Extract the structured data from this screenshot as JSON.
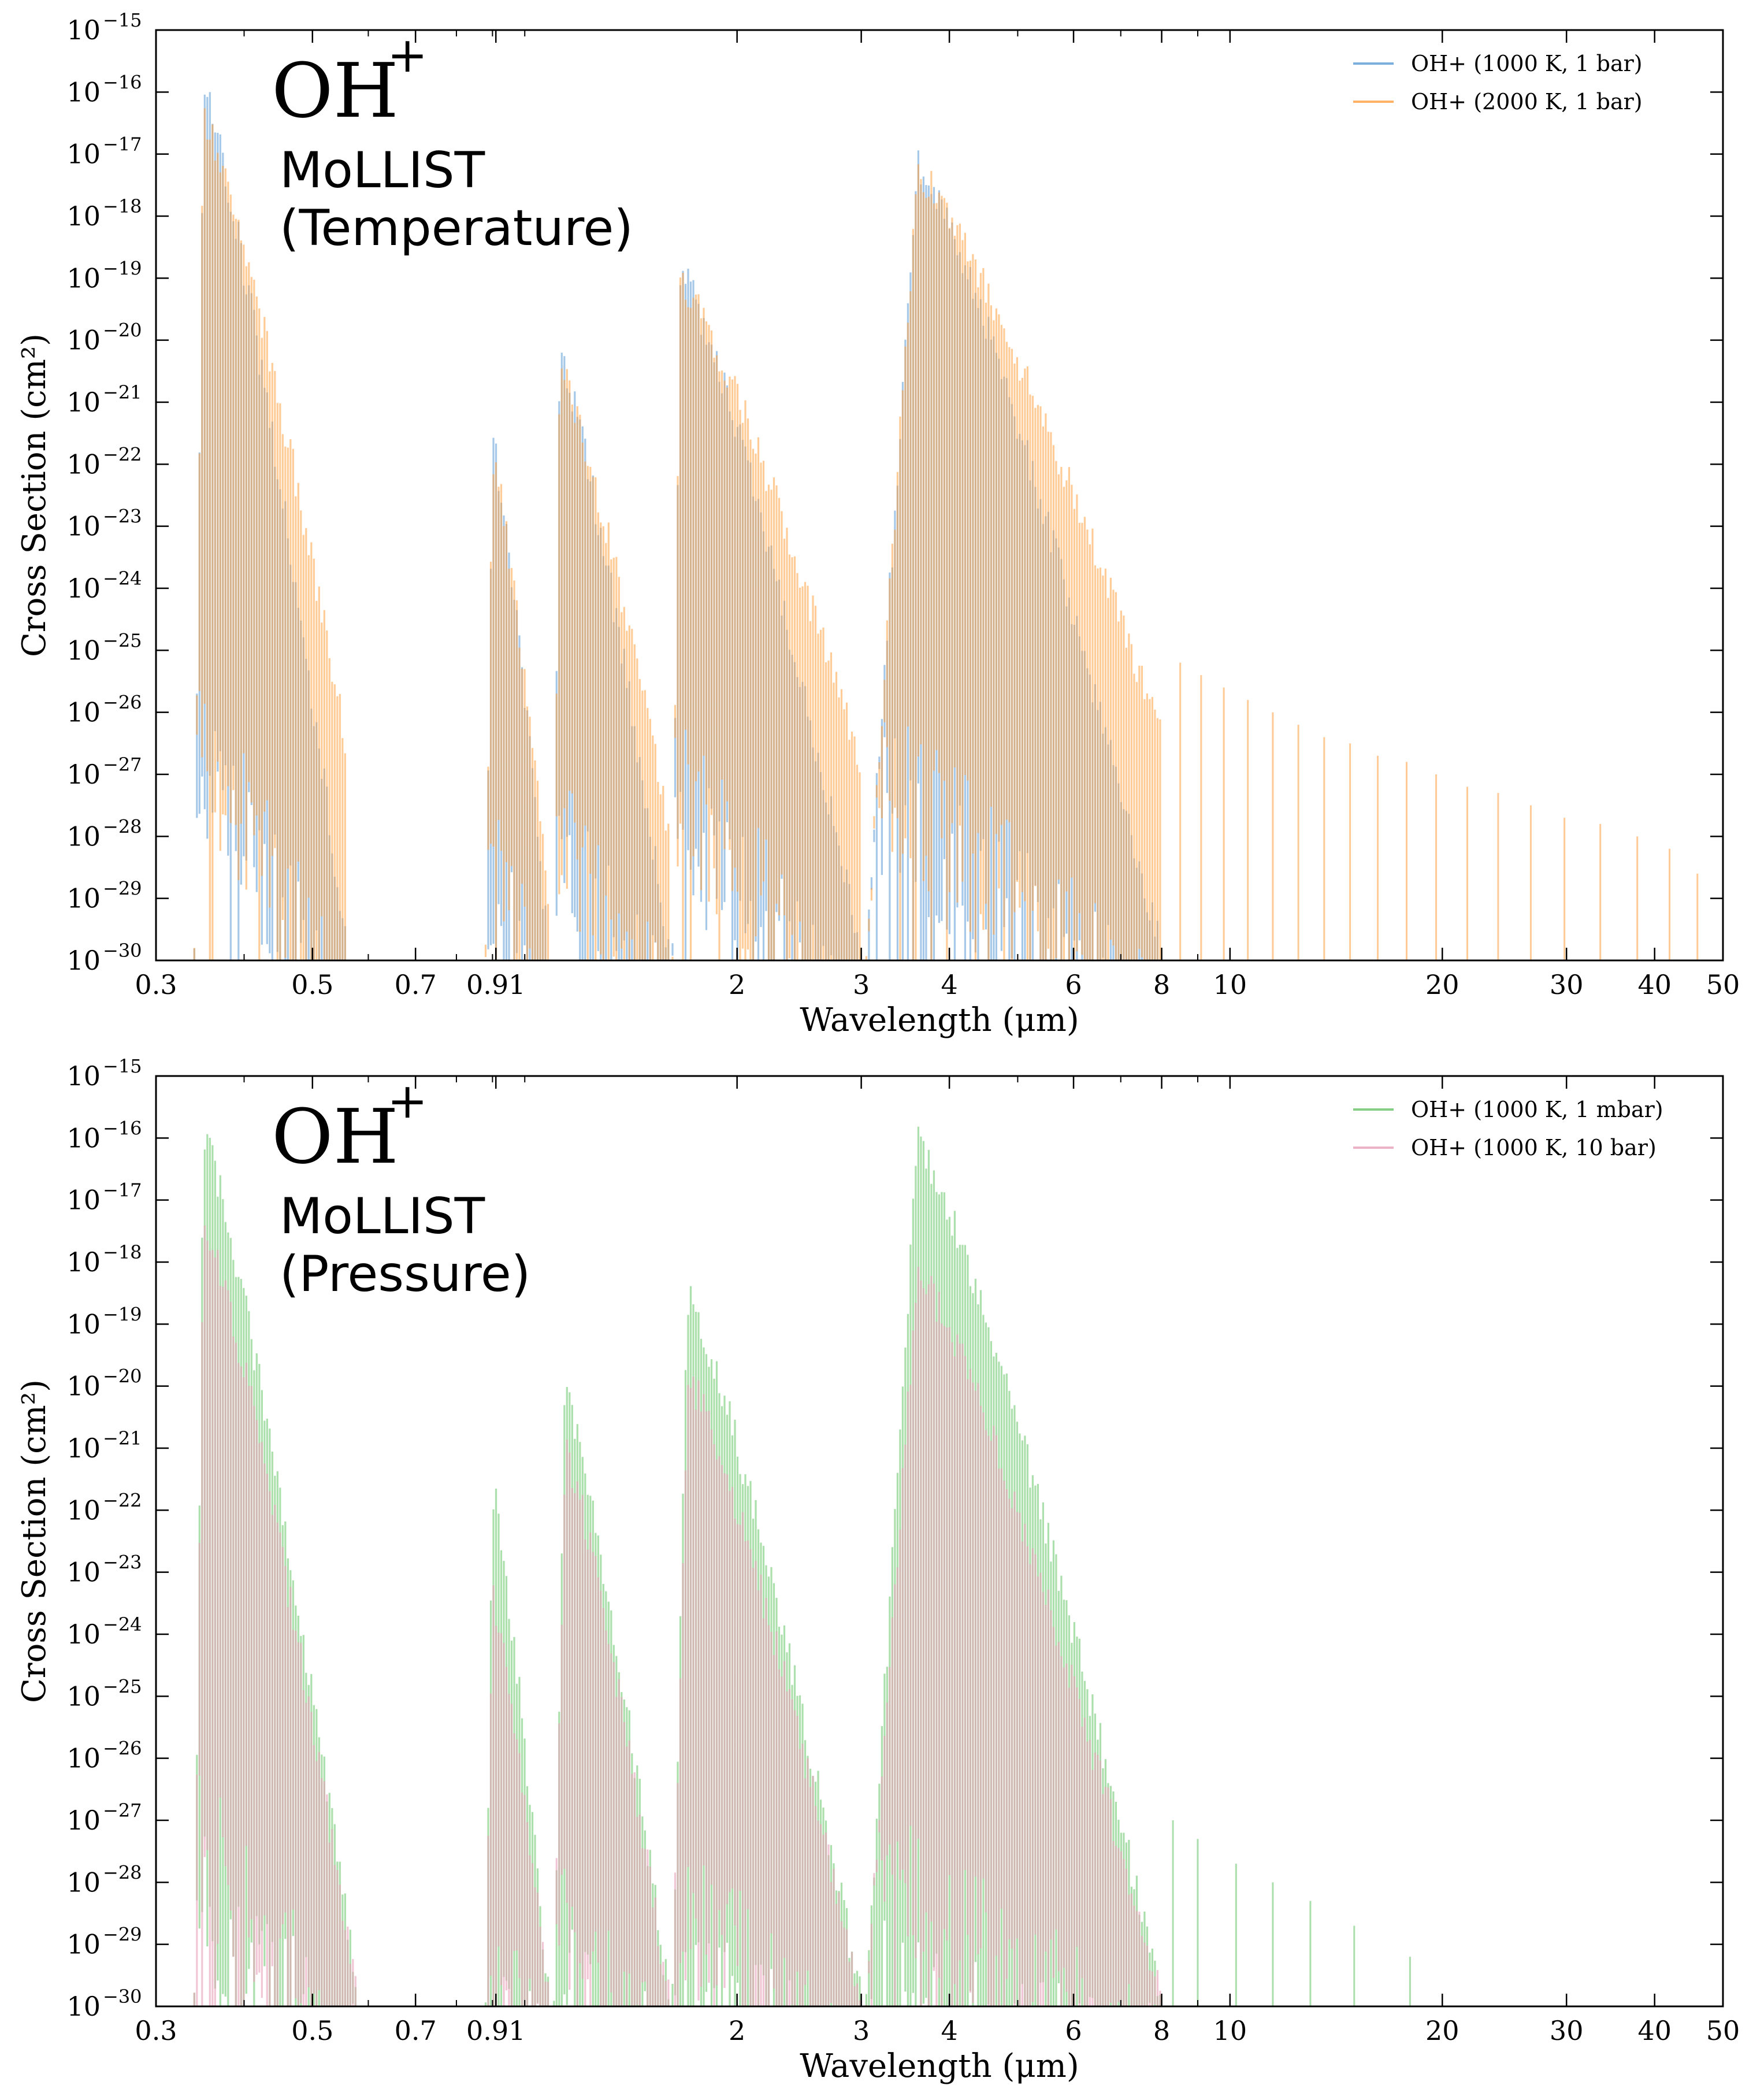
{
  "chart_data": [
    {
      "type": "line",
      "xlabel": "Wavelength (μm)",
      "ylabel": "Cross Section (cm²)",
      "x_scale": "log",
      "y_scale": "log",
      "xlim": [
        0.3,
        50
      ],
      "ylim": [
        1e-30,
        1e-15
      ],
      "x_ticks": [
        0.3,
        0.5,
        0.7,
        0.91,
        2,
        3,
        4,
        6,
        8,
        10,
        20,
        30,
        40,
        50
      ],
      "x_tick_labels": [
        "0.3",
        "0.5",
        "0.7",
        "0.91",
        "2",
        "3",
        "4",
        "6",
        "8",
        "10",
        "20",
        "30",
        "40",
        "50"
      ],
      "y_tick_exponents": [
        -15,
        -16,
        -17,
        -18,
        -19,
        -20,
        -21,
        -22,
        -23,
        -24,
        -25,
        -26,
        -27,
        -28,
        -29,
        -30
      ],
      "y_tick_base": "10",
      "grid": false,
      "legend_position": "top-right",
      "annotation": {
        "molecule": "OH",
        "charge": "+",
        "line1": "MoLLIST",
        "line2": "(Temperature)"
      },
      "bands": [
        {
          "start": 0.34,
          "peak": 0.35,
          "end": 0.56,
          "floor_end": 0.56
        },
        {
          "start": 0.88,
          "peak": 0.9,
          "end": 1.08,
          "floor_end": 1.08
        },
        {
          "start": 1.1,
          "peak": 1.12,
          "end": 1.6,
          "floor_end": 1.6
        },
        {
          "start": 1.62,
          "peak": 1.66,
          "end": 3.0,
          "floor_end": 3.0
        },
        {
          "start": 3.05,
          "peak": 3.6,
          "end": 8.0,
          "floor_end": 8.0
        }
      ],
      "series": [
        {
          "name": "OH+ (1000 K, 1 bar)",
          "color": "#5b9bd5",
          "opacity": 0.55,
          "band_peaks_log10": [
            -16.1,
            -21.8,
            -20.4,
            -19.0,
            -17.3
          ],
          "band_floors_log10": [
            -25.5,
            -27.5,
            -27.0,
            -26.5,
            -26.0
          ],
          "band_ends_log10": [
            -30,
            -30,
            -30,
            -30,
            -30
          ],
          "tail_lines": []
        },
        {
          "name": "OH+ (2000 K, 1 bar)",
          "color": "#ffa040",
          "opacity": 0.55,
          "band_peaks_log10": [
            -16.5,
            -22.0,
            -20.6,
            -19.2,
            -17.4
          ],
          "band_floors_log10": [
            -25.0,
            -27.0,
            -26.5,
            -26.0,
            -25.5
          ],
          "band_ends_log10": [
            -26.7,
            -29.0,
            -28.0,
            -27.0,
            -26.5
          ],
          "tail_lines": [
            {
              "x": 8.5,
              "y": -25.2
            },
            {
              "x": 9.1,
              "y": -25.4
            },
            {
              "x": 9.8,
              "y": -25.6
            },
            {
              "x": 10.6,
              "y": -25.8
            },
            {
              "x": 11.5,
              "y": -26.0
            },
            {
              "x": 12.5,
              "y": -26.2
            },
            {
              "x": 13.6,
              "y": -26.4
            },
            {
              "x": 14.8,
              "y": -26.5
            },
            {
              "x": 16.2,
              "y": -26.7
            },
            {
              "x": 17.8,
              "y": -26.8
            },
            {
              "x": 19.6,
              "y": -27.0
            },
            {
              "x": 21.7,
              "y": -27.2
            },
            {
              "x": 24.0,
              "y": -27.3
            },
            {
              "x": 26.7,
              "y": -27.5
            },
            {
              "x": 29.8,
              "y": -27.7
            },
            {
              "x": 33.5,
              "y": -27.8
            },
            {
              "x": 37.8,
              "y": -28.0
            },
            {
              "x": 42.0,
              "y": -28.2
            },
            {
              "x": 46.0,
              "y": -28.6
            }
          ]
        }
      ]
    },
    {
      "type": "line",
      "xlabel": "Wavelength (μm)",
      "ylabel": "Cross Section (cm²)",
      "x_scale": "log",
      "y_scale": "log",
      "xlim": [
        0.3,
        50
      ],
      "ylim": [
        1e-30,
        1e-15
      ],
      "x_ticks": [
        0.3,
        0.5,
        0.7,
        0.91,
        2,
        3,
        4,
        6,
        8,
        10,
        20,
        30,
        40,
        50
      ],
      "x_tick_labels": [
        "0.3",
        "0.5",
        "0.7",
        "0.91",
        "2",
        "3",
        "4",
        "6",
        "8",
        "10",
        "20",
        "30",
        "40",
        "50"
      ],
      "y_tick_exponents": [
        -15,
        -16,
        -17,
        -18,
        -19,
        -20,
        -21,
        -22,
        -23,
        -24,
        -25,
        -26,
        -27,
        -28,
        -29,
        -30
      ],
      "y_tick_base": "10",
      "grid": false,
      "legend_position": "top-right",
      "annotation": {
        "molecule": "OH",
        "charge": "+",
        "line1": "MoLLIST",
        "line2": "(Pressure)"
      },
      "bands": [
        {
          "start": 0.34,
          "peak": 0.35,
          "end": 0.58,
          "floor_end": 0.58
        },
        {
          "start": 0.88,
          "peak": 0.9,
          "end": 1.08,
          "floor_end": 1.08
        },
        {
          "start": 1.1,
          "peak": 1.14,
          "end": 1.6,
          "floor_end": 1.6
        },
        {
          "start": 1.62,
          "peak": 1.7,
          "end": 3.0,
          "floor_end": 3.0
        },
        {
          "start": 3.05,
          "peak": 3.6,
          "end": 8.0,
          "floor_end": 8.0
        }
      ],
      "series": [
        {
          "name": "OH+ (1000 K, 1 mbar)",
          "color": "#66c466",
          "opacity": 0.55,
          "band_peaks_log10": [
            -16.1,
            -21.8,
            -20.2,
            -18.7,
            -16.2
          ],
          "band_floors_log10": [
            -27.0,
            -29.0,
            -28.5,
            -28.5,
            -28.5
          ],
          "band_ends_log10": [
            -30,
            -30,
            -30,
            -30,
            -30
          ],
          "tail_lines": [
            {
              "x": 8.3,
              "y": -27.0
            },
            {
              "x": 9.0,
              "y": -27.3
            },
            {
              "x": 10.2,
              "y": -27.7
            },
            {
              "x": 11.5,
              "y": -28.0
            },
            {
              "x": 13.0,
              "y": -28.3
            },
            {
              "x": 15.0,
              "y": -28.7
            },
            {
              "x": 18.0,
              "y": -29.2
            }
          ]
        },
        {
          "name": "OH+ (1000 K, 10 bar)",
          "color": "#e8a0b8",
          "opacity": 0.6,
          "band_peaks_log10": [
            -17.5,
            -23.5,
            -21.2,
            -20.0,
            -18.3
          ],
          "band_floors_log10": [
            -26.0,
            -28.0,
            -27.5,
            -27.0,
            -26.5
          ],
          "band_ends_log10": [
            -30,
            -30,
            -30,
            -30,
            -30
          ],
          "tail_lines": []
        }
      ]
    }
  ]
}
